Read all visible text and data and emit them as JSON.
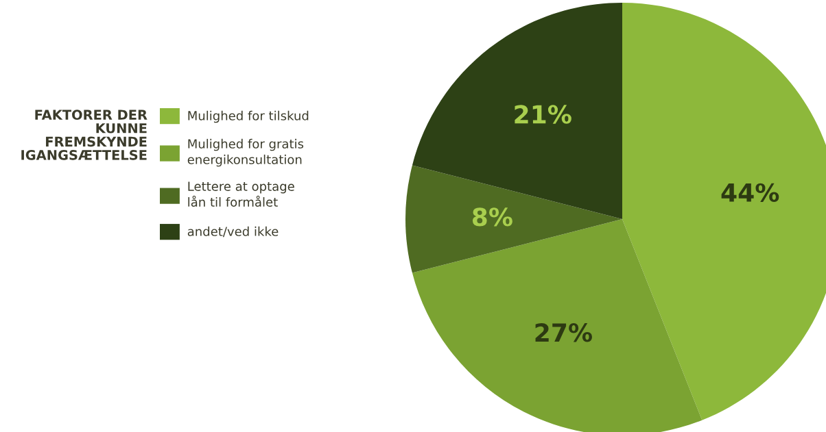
{
  "chart_data": {
    "type": "pie",
    "title": "FAKTORER DER\nKUNNE\nFREMSKYNDE\nIGANGSÆTTELSE",
    "categories": [
      "Mulighed for tilskud",
      "Mulighed for gratis\nenergikonsultation",
      "Lettere at optage\nlån til formålet",
      "andet/ved ikke"
    ],
    "values": [
      44,
      27,
      8,
      21
    ],
    "colors": [
      "#8db83b",
      "#7ba332",
      "#4f6b22",
      "#2d4115"
    ],
    "value_labels": [
      "44%",
      "27%",
      "8%",
      "21%"
    ],
    "legend": "left"
  }
}
